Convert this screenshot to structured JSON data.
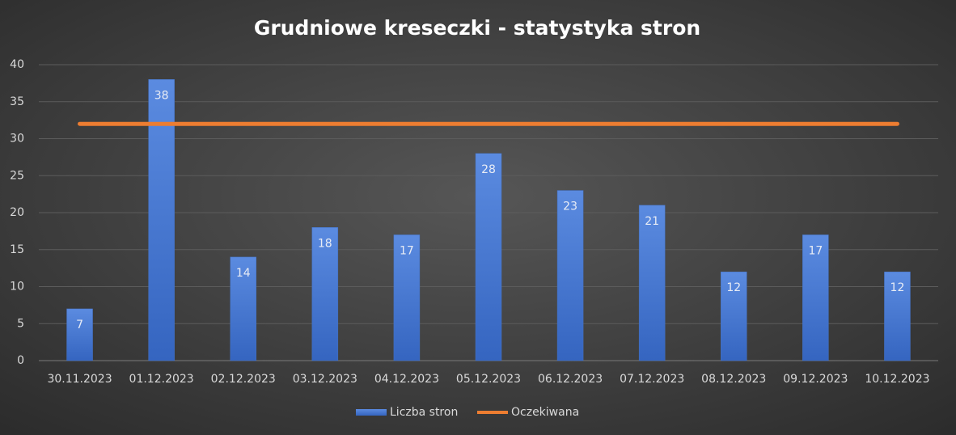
{
  "chart_data": {
    "type": "bar",
    "title": "Grudniowe kreseczki - statystyka stron",
    "categories": [
      "30.11.2023",
      "01.12.2023",
      "02.12.2023",
      "03.12.2023",
      "04.12.2023",
      "05.12.2023",
      "06.12.2023",
      "07.12.2023",
      "08.12.2023",
      "09.12.2023",
      "10.12.2023"
    ],
    "series": [
      {
        "name": "Liczba stron",
        "color": "#4472c4",
        "type": "bar",
        "values": [
          7,
          38,
          14,
          18,
          17,
          28,
          23,
          21,
          12,
          17,
          12
        ]
      },
      {
        "name": "Oczekiwana",
        "color": "#ed7d31",
        "type": "line",
        "values": [
          32,
          32,
          32,
          32,
          32,
          32,
          32,
          32,
          32,
          32,
          32
        ]
      }
    ],
    "ylim": [
      0,
      40
    ],
    "yticks": [
      0,
      5,
      10,
      15,
      20,
      25,
      30,
      35,
      40
    ],
    "grid": true,
    "legend": "bottom"
  }
}
